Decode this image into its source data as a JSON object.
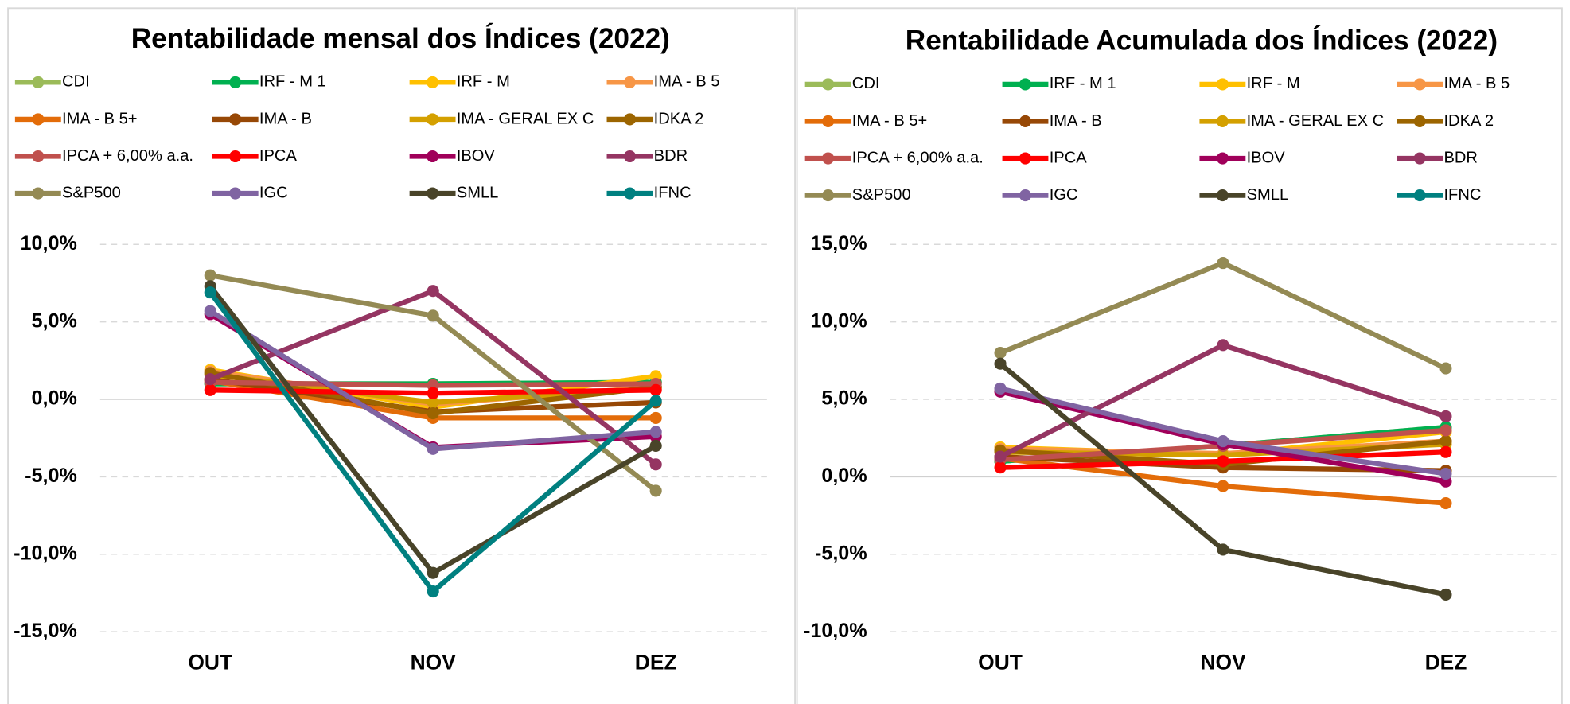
{
  "chart_data": [
    {
      "type": "line",
      "title": "Rentabilidade mensal dos Índices (2022)",
      "categories": [
        "OUT",
        "NOV",
        "DEZ"
      ],
      "ylim": [
        -15,
        10
      ],
      "yticks": [
        {
          "value": -15,
          "label": "-15,0%"
        },
        {
          "value": -10,
          "label": "-10,0%"
        },
        {
          "value": -5,
          "label": "-5,0%"
        },
        {
          "value": 0,
          "label": "0,0%"
        },
        {
          "value": 5,
          "label": "5,0%"
        },
        {
          "value": 10,
          "label": "10,0%"
        }
      ],
      "grid": true,
      "series": [
        {
          "name": "CDI",
          "color": "#9bbb59",
          "values": [
            1.0,
            1.0,
            1.1
          ]
        },
        {
          "name": "IRF - M 1",
          "color": "#00b050",
          "values": [
            1.0,
            1.0,
            1.1
          ]
        },
        {
          "name": "IRF - M",
          "color": "#ffc000",
          "values": [
            1.9,
            -0.5,
            1.5
          ]
        },
        {
          "name": "IMA - B 5",
          "color": "#f79646",
          "values": [
            1.8,
            -0.3,
            0.8
          ]
        },
        {
          "name": "IMA - B 5+",
          "color": "#e36c09",
          "values": [
            1.2,
            -1.2,
            -1.2
          ]
        },
        {
          "name": "IMA - B",
          "color": "#974806",
          "values": [
            1.3,
            -0.8,
            -0.2
          ]
        },
        {
          "name": "IMA - GERAL EX C",
          "color": "#d4a000",
          "values": [
            1.6,
            -0.2,
            0.7
          ]
        },
        {
          "name": "IDKA 2",
          "color": "#9c6500",
          "values": [
            1.7,
            -0.9,
            0.8
          ]
        },
        {
          "name": "IPCA + 6,00% a.a.",
          "color": "#c0504d",
          "values": [
            1.1,
            0.9,
            1.0
          ]
        },
        {
          "name": "IPCA",
          "color": "#ff0000",
          "values": [
            0.6,
            0.4,
            0.6
          ]
        },
        {
          "name": "IBOV",
          "color": "#a0005a",
          "values": [
            5.5,
            -3.1,
            -2.4
          ]
        },
        {
          "name": "BDR",
          "color": "#953562",
          "values": [
            1.3,
            7.0,
            -4.2
          ]
        },
        {
          "name": "S&P500",
          "color": "#948a54",
          "values": [
            8.0,
            5.4,
            -5.9
          ]
        },
        {
          "name": "IGC",
          "color": "#8064a2",
          "values": [
            5.7,
            -3.2,
            -2.1
          ]
        },
        {
          "name": "SMLL",
          "color": "#494429",
          "values": [
            7.3,
            -11.2,
            -3.0
          ]
        },
        {
          "name": "IFNC",
          "color": "#008080",
          "values": [
            6.9,
            -12.4,
            -0.1
          ]
        }
      ]
    },
    {
      "type": "line",
      "title": "Rentabilidade Acumulada dos Índices (2022)",
      "categories": [
        "OUT",
        "NOV",
        "DEZ"
      ],
      "ylim": [
        -10,
        15
      ],
      "yticks": [
        {
          "value": -10,
          "label": "-10,0%"
        },
        {
          "value": -5,
          "label": "-5,0%"
        },
        {
          "value": 0,
          "label": "0,0%"
        },
        {
          "value": 5,
          "label": "5,0%"
        },
        {
          "value": 10,
          "label": "10,0%"
        },
        {
          "value": 15,
          "label": "15,0%"
        }
      ],
      "grid": true,
      "series": [
        {
          "name": "CDI",
          "color": "#9bbb59",
          "values": [
            1.0,
            2.0,
            3.2
          ]
        },
        {
          "name": "IRF - M 1",
          "color": "#00b050",
          "values": [
            1.0,
            2.0,
            3.2
          ]
        },
        {
          "name": "IRF - M",
          "color": "#ffc000",
          "values": [
            1.9,
            1.4,
            2.9
          ]
        },
        {
          "name": "IMA - B 5",
          "color": "#f79646",
          "values": [
            1.8,
            1.5,
            2.3
          ]
        },
        {
          "name": "IMA - B 5+",
          "color": "#e36c09",
          "values": [
            1.2,
            -0.6,
            -1.7
          ]
        },
        {
          "name": "IMA - B",
          "color": "#974806",
          "values": [
            1.3,
            0.6,
            0.4
          ]
        },
        {
          "name": "IMA - GERAL EX C",
          "color": "#d4a000",
          "values": [
            1.6,
            1.4,
            2.1
          ]
        },
        {
          "name": "IDKA 2",
          "color": "#9c6500",
          "values": [
            1.7,
            0.8,
            2.3
          ]
        },
        {
          "name": "IPCA + 6,00% a.a.",
          "color": "#c0504d",
          "values": [
            1.1,
            2.0,
            3.0
          ]
        },
        {
          "name": "IPCA",
          "color": "#ff0000",
          "values": [
            0.6,
            1.0,
            1.6
          ]
        },
        {
          "name": "IBOV",
          "color": "#a0005a",
          "values": [
            5.5,
            2.1,
            -0.3
          ]
        },
        {
          "name": "BDR",
          "color": "#953562",
          "values": [
            1.3,
            8.5,
            3.9
          ]
        },
        {
          "name": "S&P500",
          "color": "#948a54",
          "values": [
            8.0,
            13.8,
            7.0
          ]
        },
        {
          "name": "IGC",
          "color": "#8064a2",
          "values": [
            5.7,
            2.3,
            0.2
          ]
        },
        {
          "name": "SMLL",
          "color": "#494429",
          "values": [
            7.3,
            -4.7,
            -7.6
          ]
        },
        {
          "name": "IFNC",
          "color": "#008080",
          "values": [
            null,
            null,
            null
          ]
        }
      ]
    }
  ]
}
